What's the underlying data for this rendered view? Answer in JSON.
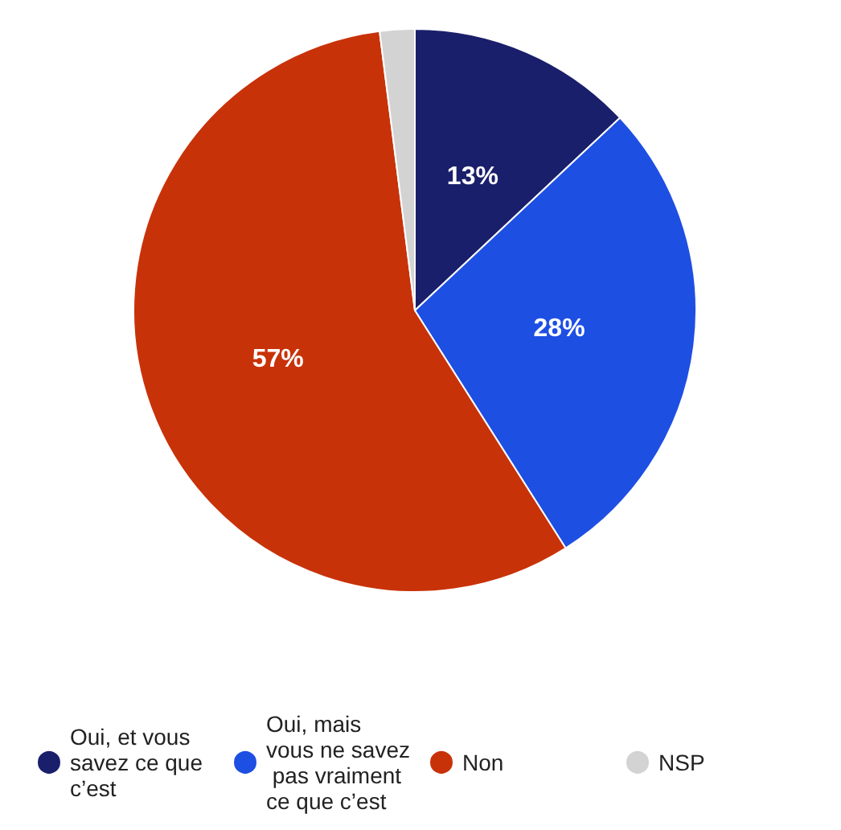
{
  "chart_data": {
    "type": "pie",
    "categories": [
      "Oui, et vous savez ce que c’est",
      "Oui, mais vous ne savez pas vraiment ce que c’est",
      "Non",
      "NSP"
    ],
    "values": [
      13,
      28,
      57,
      2
    ],
    "colors": [
      "#1a1f6b",
      "#1e4fe3",
      "#c83209",
      "#d3d3d3"
    ],
    "value_labels": [
      "13%",
      "28%",
      "57%",
      null
    ],
    "legend": "bottom"
  }
}
